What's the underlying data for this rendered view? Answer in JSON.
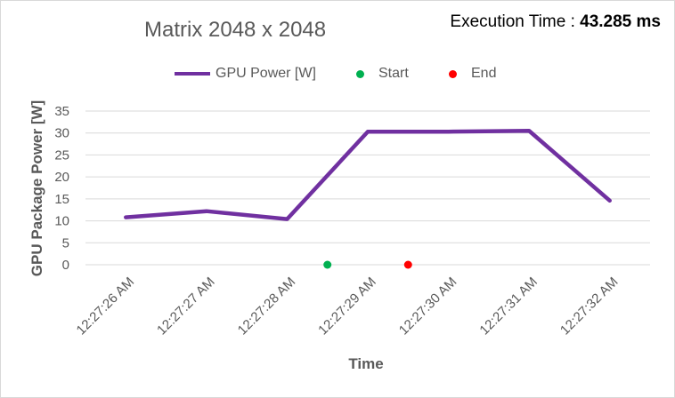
{
  "chart_data": {
    "type": "line",
    "title": "Matrix 2048 x 2048",
    "annotation": {
      "label": "Execution Time :",
      "value": "43.285 ms"
    },
    "xlabel": "Time",
    "ylabel": "GPU Package Power [W]",
    "categories": [
      "12:27:26 AM",
      "12:27:27 AM",
      "12:27:28 AM",
      "12:27:29 AM",
      "12:27:30 AM",
      "12:27:31 AM",
      "12:27:32 AM"
    ],
    "ylim": [
      0,
      35
    ],
    "yticks": [
      0,
      5,
      10,
      15,
      20,
      25,
      30,
      35
    ],
    "grid": true,
    "legend_position": "top",
    "series": [
      {
        "name": "GPU Power [W]",
        "kind": "line",
        "color": "#7030a0",
        "values": [
          10.8,
          12.2,
          10.4,
          30.3,
          30.3,
          30.5,
          14.6
        ]
      },
      {
        "name": "Start",
        "kind": "marker",
        "color": "#00b050",
        "x_index": 2.5,
        "value": 0
      },
      {
        "name": "End",
        "kind": "marker",
        "color": "#ff0000",
        "x_index": 3.5,
        "value": 0
      }
    ]
  }
}
